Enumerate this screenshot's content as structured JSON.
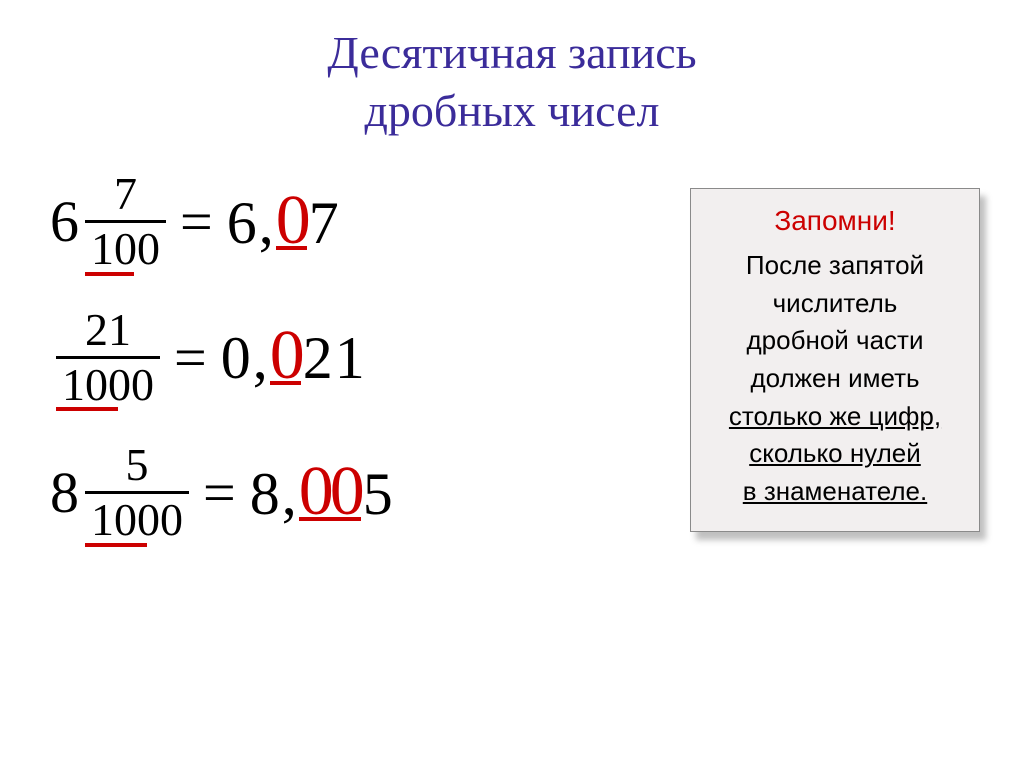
{
  "title": {
    "line1": "Десятичная запись",
    "line2": "дробных чисел",
    "color": "#3b2c9a",
    "fontsize": 46
  },
  "equations": [
    {
      "whole_left": "6",
      "numerator": "7",
      "denominator": "100",
      "den_underline_full": false,
      "rhs_int": "6",
      "rhs_zeros": "0",
      "rhs_tail": "7"
    },
    {
      "whole_left": "",
      "numerator": "21",
      "denominator": "1000",
      "den_underline_full": false,
      "rhs_int": "0",
      "rhs_zeros": "0",
      "rhs_tail": "21"
    },
    {
      "whole_left": "8",
      "numerator": "5",
      "denominator": "1000",
      "den_underline_full": false,
      "rhs_int": "8",
      "rhs_zeros": "00",
      "rhs_tail": "5"
    }
  ],
  "note": {
    "title": "Запомни!",
    "title_color": "#cc0000",
    "lines": [
      {
        "text": "После запятой",
        "underline": false
      },
      {
        "text": "числитель",
        "underline": false
      },
      {
        "text": "дробной части",
        "underline": false
      },
      {
        "text": "должен иметь",
        "underline": false
      },
      {
        "text": "столько же цифр,",
        "underline": true
      },
      {
        "text": "сколько нулей",
        "underline": true
      },
      {
        "text": "в знаменателе.",
        "underline": true
      }
    ],
    "background": "#f2efef",
    "border_color": "#8a8a8a",
    "fontsize": 26
  },
  "colors": {
    "accent_red": "#cc0000",
    "text": "#000000",
    "bg": "#ffffff"
  }
}
